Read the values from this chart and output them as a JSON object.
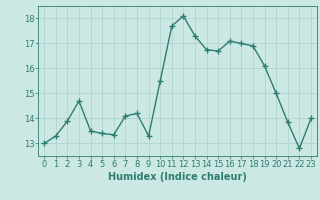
{
  "x": [
    0,
    1,
    2,
    3,
    4,
    5,
    6,
    7,
    8,
    9,
    10,
    11,
    12,
    13,
    14,
    15,
    16,
    17,
    18,
    19,
    20,
    21,
    22,
    23
  ],
  "y": [
    13.0,
    13.3,
    13.9,
    14.7,
    13.5,
    13.4,
    13.35,
    14.1,
    14.2,
    13.3,
    15.5,
    17.7,
    18.1,
    17.3,
    16.75,
    16.7,
    17.1,
    17.0,
    16.9,
    16.1,
    15.0,
    13.85,
    12.8,
    14.0
  ],
  "line_color": "#2e7d6e",
  "marker": "+",
  "marker_size": 4,
  "marker_edge_width": 1.0,
  "bg_color": "#cce8e4",
  "grid_color": "#b0d4d0",
  "xlabel": "Humidex (Indice chaleur)",
  "xlabel_fontsize": 7,
  "tick_fontsize": 6,
  "tick_color": "#2e7d6e",
  "axis_color": "#2e7d6e",
  "ylim": [
    12.5,
    18.5
  ],
  "xlim": [
    -0.5,
    23.5
  ],
  "yticks": [
    13,
    14,
    15,
    16,
    17,
    18
  ],
  "xticks": [
    0,
    1,
    2,
    3,
    4,
    5,
    6,
    7,
    8,
    9,
    10,
    11,
    12,
    13,
    14,
    15,
    16,
    17,
    18,
    19,
    20,
    21,
    22,
    23
  ],
  "line_width": 1.0
}
